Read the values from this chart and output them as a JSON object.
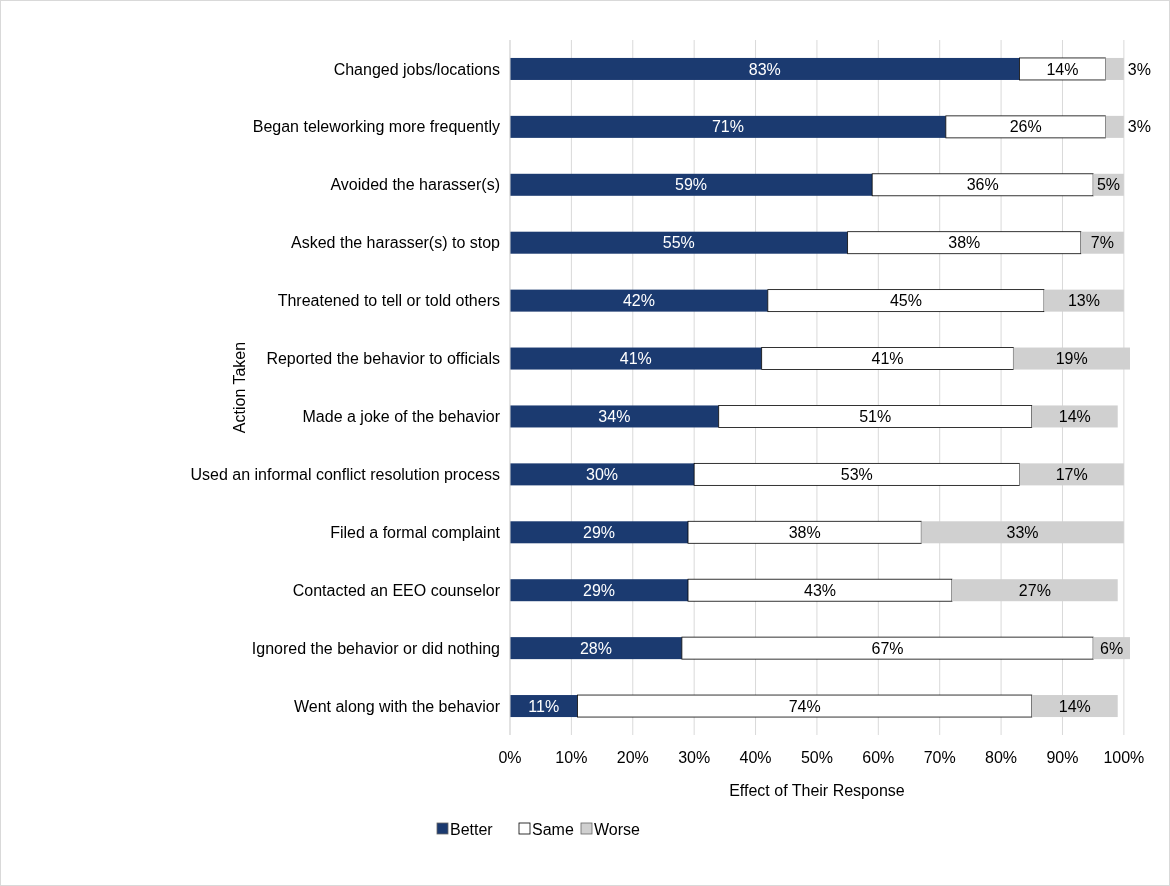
{
  "chart_data": {
    "type": "bar",
    "orientation": "horizontal",
    "stacked": true,
    "xlabel": "Effect of Their Response",
    "ylabel": "Action Taken",
    "categories": [
      "Changed jobs/locations",
      "Began teleworking more frequently",
      "Avoided the harasser(s)",
      "Asked the harasser(s) to stop",
      "Threatened to tell or told others",
      "Reported the behavior to officials",
      "Made a joke of the behavior",
      "Used an informal conflict resolution process",
      "Filed a formal complaint",
      "Contacted an EEO counselor",
      "Ignored the behavior or did nothing",
      "Went along with the behavior"
    ],
    "series": [
      {
        "name": "Better",
        "color": "#1b3a70",
        "values": [
          83,
          71,
          59,
          55,
          42,
          41,
          34,
          30,
          29,
          29,
          28,
          11
        ],
        "value_labels": [
          "83%",
          "71%",
          "59%",
          "55%",
          "42%",
          "41%",
          "34%",
          "30%",
          "29%",
          "29%",
          "28%",
          "11%"
        ]
      },
      {
        "name": "Same",
        "color": "#ffffff",
        "values": [
          14,
          26,
          36,
          38,
          45,
          41,
          51,
          53,
          38,
          43,
          67,
          74
        ],
        "value_labels": [
          "14%",
          "26%",
          "36%",
          "38%",
          "45%",
          "41%",
          "51%",
          "53%",
          "38%",
          "43%",
          "67%",
          "74%"
        ]
      },
      {
        "name": "Worse",
        "color": "#d0d0d0",
        "values": [
          3,
          3,
          5,
          7,
          13,
          19,
          14,
          17,
          33,
          27,
          6,
          14
        ],
        "value_labels": [
          "3%",
          "3%",
          "5%",
          "7%",
          "13%",
          "19%",
          "14%",
          "17%",
          "33%",
          "27%",
          "6%",
          "14%"
        ]
      }
    ],
    "xlim": [
      0,
      101
    ],
    "xticks": [
      {
        "value": 0,
        "label": "0%"
      },
      {
        "value": 10,
        "label": "10%"
      },
      {
        "value": 20,
        "label": "20%"
      },
      {
        "value": 30,
        "label": "30%"
      },
      {
        "value": 40,
        "label": "40%"
      },
      {
        "value": 50,
        "label": "50%"
      },
      {
        "value": 60,
        "label": "60%"
      },
      {
        "value": 70,
        "label": "70%"
      },
      {
        "value": 80,
        "label": "80%"
      },
      {
        "value": 90,
        "label": "90%"
      },
      {
        "value": 100,
        "label": "100%"
      }
    ],
    "grid": "x",
    "legend": "bottom"
  }
}
